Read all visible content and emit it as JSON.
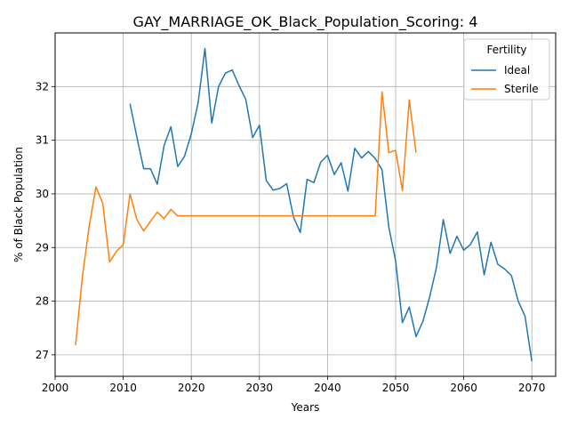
{
  "chart_data": {
    "type": "line",
    "title": "GAY_MARRIAGE_OK_Black_Population_Scoring: 4",
    "xlabel": "Years",
    "ylabel": "% of Black Population",
    "xlim": [
      2000,
      2073.5
    ],
    "ylim": [
      26.6,
      33.0
    ],
    "xticks": [
      2000,
      2010,
      2020,
      2030,
      2040,
      2050,
      2060,
      2070
    ],
    "yticks": [
      27,
      28,
      29,
      30,
      31,
      32
    ],
    "grid": true,
    "legend": {
      "title": "Fertility",
      "placement": "top-right"
    },
    "series": [
      {
        "name": "Ideal",
        "color": "#1f77b4",
        "x": [
          2011,
          2012,
          2013,
          2014,
          2015,
          2016,
          2017,
          2018,
          2019,
          2020,
          2021,
          2022,
          2023,
          2024,
          2025,
          2026,
          2027,
          2028,
          2029,
          2030,
          2031,
          2032,
          2033,
          2034,
          2035,
          2036,
          2037,
          2038,
          2039,
          2040,
          2041,
          2042,
          2043,
          2044,
          2045,
          2046,
          2047,
          2048,
          2049,
          2050,
          2051,
          2052,
          2053,
          2054,
          2055,
          2056,
          2057,
          2058,
          2059,
          2060,
          2061,
          2062,
          2063,
          2064,
          2065,
          2066,
          2067,
          2068,
          2069,
          2070
        ],
        "y": [
          31.68,
          31.06,
          30.47,
          30.47,
          30.18,
          30.9,
          31.25,
          30.51,
          30.7,
          31.12,
          31.7,
          32.71,
          31.32,
          32.0,
          32.25,
          32.31,
          32.02,
          31.76,
          31.05,
          31.28,
          30.25,
          30.07,
          30.1,
          30.19,
          29.57,
          29.28,
          30.27,
          30.21,
          30.59,
          30.72,
          30.36,
          30.58,
          30.05,
          30.85,
          30.67,
          30.79,
          30.66,
          30.45,
          29.38,
          28.75,
          27.6,
          27.89,
          27.34,
          27.62,
          28.08,
          28.63,
          29.52,
          28.89,
          29.21,
          28.95,
          29.06,
          29.29,
          28.49,
          29.1,
          28.69,
          28.6,
          28.48,
          28.0,
          27.72,
          26.88
        ]
      },
      {
        "name": "Sterile",
        "color": "#ff7f0e",
        "x": [
          2003,
          2004,
          2005,
          2006,
          2007,
          2008,
          2009,
          2010,
          2011,
          2012,
          2013,
          2014,
          2015,
          2016,
          2017,
          2018,
          2019,
          2020,
          2021,
          2022,
          2023,
          2024,
          2025,
          2026,
          2027,
          2028,
          2029,
          2030,
          2031,
          2032,
          2033,
          2034,
          2035,
          2036,
          2037,
          2038,
          2039,
          2040,
          2041,
          2042,
          2043,
          2044,
          2045,
          2046,
          2047,
          2048,
          2049,
          2050,
          2051,
          2052,
          2053
        ],
        "y": [
          27.18,
          28.45,
          29.4,
          30.13,
          29.82,
          28.73,
          28.93,
          29.05,
          30.0,
          29.52,
          29.31,
          29.49,
          29.66,
          29.54,
          29.71,
          29.59,
          29.59,
          29.59,
          29.59,
          29.59,
          29.59,
          29.59,
          29.59,
          29.59,
          29.59,
          29.59,
          29.59,
          29.59,
          29.59,
          29.59,
          29.59,
          29.59,
          29.59,
          29.59,
          29.59,
          29.59,
          29.59,
          29.59,
          29.59,
          29.59,
          29.59,
          29.59,
          29.59,
          29.59,
          29.59,
          31.9,
          30.77,
          30.81,
          30.06,
          31.75,
          30.77
        ]
      }
    ]
  }
}
